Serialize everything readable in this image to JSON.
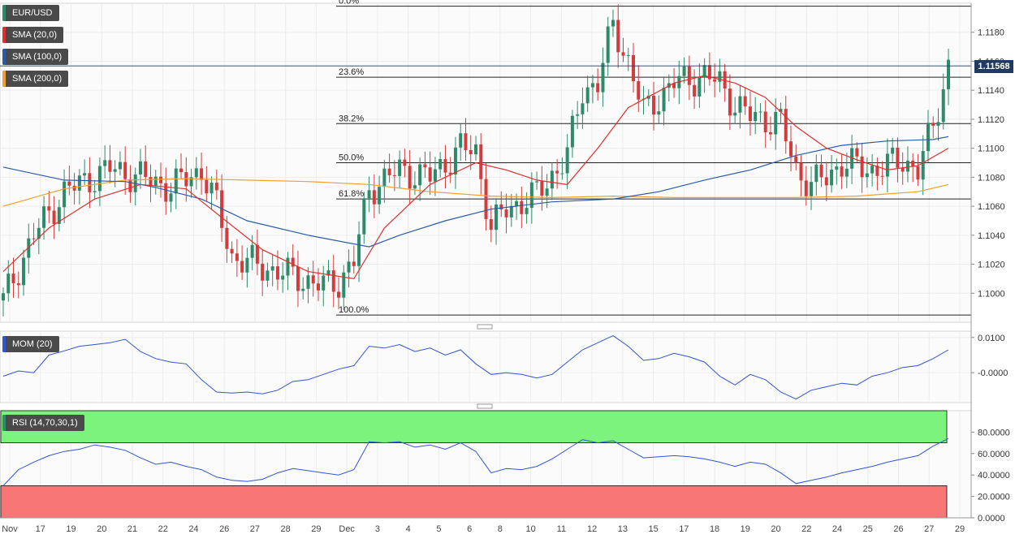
{
  "instrument_label": "EUR/USD",
  "last_price": "1.11568",
  "indicators": {
    "sma20": {
      "label": "SMA (20,0)",
      "color": "#e0302b"
    },
    "sma100": {
      "label": "SMA (100,0)",
      "color": "#2a5ba8"
    },
    "sma200": {
      "label": "SMA (200,0)",
      "color": "#f0a030"
    },
    "mom": {
      "label": "MOM (20)",
      "color": "#2f55d4"
    },
    "rsi": {
      "label": "RSI (14,70,30,1)",
      "color": "#2f55d4"
    }
  },
  "colors": {
    "up": "#2e8b6a",
    "down": "#d23c3c",
    "rsi_over": "#7cf37c",
    "rsi_under": "#f87676"
  },
  "chart_data": [
    {
      "type": "candlestick",
      "title": "EUR/USD",
      "ylim": [
        1.098,
        1.12
      ],
      "yticks": [
        "1.1180",
        "1.1160",
        "1.1140",
        "1.1120",
        "1.1100",
        "1.1080",
        "1.1060",
        "1.1040",
        "1.1020",
        "1.1000"
      ],
      "fibonacci": [
        {
          "label": "0.0%",
          "price": 1.1198
        },
        {
          "label": "23.6%",
          "price": 1.1149
        },
        {
          "label": "38.2%",
          "price": 1.1117
        },
        {
          "label": "50.0%",
          "price": 1.109
        },
        {
          "label": "61.8%",
          "price": 1.1065
        },
        {
          "label": "100.0%",
          "price": 1.0985
        }
      ],
      "close_trace": [
        {
          "x": 0,
          "y": 1.0995
        },
        {
          "x": 2,
          "y": 1.104
        },
        {
          "x": 4,
          "y": 1.107
        },
        {
          "x": 7,
          "y": 1.1086
        },
        {
          "x": 9,
          "y": 1.108
        },
        {
          "x": 11,
          "y": 1.1073
        },
        {
          "x": 13,
          "y": 1.1085
        },
        {
          "x": 14,
          "y": 1.106
        },
        {
          "x": 15,
          "y": 1.1025
        },
        {
          "x": 17,
          "y": 1.1018
        },
        {
          "x": 19,
          "y": 1.1012
        },
        {
          "x": 21,
          "y": 1.1005
        },
        {
          "x": 22,
          "y": 1.1008
        },
        {
          "x": 23,
          "y": 1.1022
        },
        {
          "x": 24,
          "y": 1.1072
        },
        {
          "x": 26,
          "y": 1.1085
        },
        {
          "x": 28,
          "y": 1.108
        },
        {
          "x": 30,
          "y": 1.11
        },
        {
          "x": 31,
          "y": 1.1098
        },
        {
          "x": 32,
          "y": 1.1045
        },
        {
          "x": 33,
          "y": 1.1058
        },
        {
          "x": 35,
          "y": 1.1068
        },
        {
          "x": 37,
          "y": 1.1095
        },
        {
          "x": 38,
          "y": 1.114
        },
        {
          "x": 39,
          "y": 1.1145
        },
        {
          "x": 40,
          "y": 1.1185
        },
        {
          "x": 41,
          "y": 1.116
        },
        {
          "x": 42,
          "y": 1.1125
        },
        {
          "x": 44,
          "y": 1.1145
        },
        {
          "x": 46,
          "y": 1.115
        },
        {
          "x": 47,
          "y": 1.1145
        },
        {
          "x": 48,
          "y": 1.113
        },
        {
          "x": 49,
          "y": 1.1122
        },
        {
          "x": 51,
          "y": 1.1118
        },
        {
          "x": 52,
          "y": 1.1085
        },
        {
          "x": 53,
          "y": 1.1075
        },
        {
          "x": 54,
          "y": 1.108
        },
        {
          "x": 55,
          "y": 1.109
        },
        {
          "x": 57,
          "y": 1.1085
        },
        {
          "x": 58,
          "y": 1.1088
        },
        {
          "x": 59,
          "y": 1.1092
        },
        {
          "x": 60,
          "y": 1.1085
        },
        {
          "x": 61,
          "y": 1.1115
        },
        {
          "x": 62,
          "y": 1.1157
        }
      ],
      "sma20": [
        [
          0,
          1.1015
        ],
        [
          3,
          1.1045
        ],
        [
          6,
          1.1065
        ],
        [
          9,
          1.1075
        ],
        [
          12,
          1.1072
        ],
        [
          14,
          1.1055
        ],
        [
          17,
          1.103
        ],
        [
          20,
          1.1015
        ],
        [
          23,
          1.101
        ],
        [
          25,
          1.1045
        ],
        [
          28,
          1.1075
        ],
        [
          31,
          1.109
        ],
        [
          33,
          1.1085
        ],
        [
          35,
          1.1078
        ],
        [
          37,
          1.1075
        ],
        [
          39,
          1.11
        ],
        [
          41,
          1.1128
        ],
        [
          44,
          1.1145
        ],
        [
          46,
          1.115
        ],
        [
          48,
          1.1145
        ],
        [
          50,
          1.1135
        ],
        [
          52,
          1.1115
        ],
        [
          54,
          1.11
        ],
        [
          56,
          1.1092
        ],
        [
          58,
          1.1085
        ],
        [
          60,
          1.1088
        ],
        [
          62,
          1.11
        ]
      ],
      "sma100": [
        [
          0,
          1.1087
        ],
        [
          4,
          1.1078
        ],
        [
          8,
          1.1077
        ],
        [
          10,
          1.1073
        ],
        [
          13,
          1.1065
        ],
        [
          16,
          1.105
        ],
        [
          20,
          1.104
        ],
        [
          24,
          1.1032
        ],
        [
          26,
          1.104
        ],
        [
          29,
          1.105
        ],
        [
          32,
          1.1058
        ],
        [
          36,
          1.1063
        ],
        [
          40,
          1.1065
        ],
        [
          43,
          1.107
        ],
        [
          46,
          1.1078
        ],
        [
          49,
          1.1085
        ],
        [
          52,
          1.1095
        ],
        [
          55,
          1.1102
        ],
        [
          58,
          1.1105
        ],
        [
          61,
          1.1106
        ],
        [
          62,
          1.1108
        ]
      ],
      "sma200": [
        [
          0,
          1.106
        ],
        [
          4,
          1.1072
        ],
        [
          8,
          1.1078
        ],
        [
          12,
          1.1079
        ],
        [
          16,
          1.1078
        ],
        [
          20,
          1.1077
        ],
        [
          24,
          1.1075
        ],
        [
          28,
          1.107
        ],
        [
          32,
          1.1067
        ],
        [
          36,
          1.1066
        ],
        [
          40,
          1.1067
        ],
        [
          44,
          1.1066
        ],
        [
          48,
          1.1066
        ],
        [
          52,
          1.1066
        ],
        [
          56,
          1.1067
        ],
        [
          60,
          1.107
        ],
        [
          62,
          1.1075
        ]
      ],
      "x_ticks": [
        "Nov",
        "17",
        "19",
        "20",
        "21",
        "22",
        "24",
        "26",
        "27",
        "28",
        "29",
        "Dec",
        "3",
        "4",
        "5",
        "6",
        "8",
        "10",
        "11",
        "12",
        "13",
        "15",
        "17",
        "18",
        "19",
        "20",
        "22",
        "24",
        "25",
        "26",
        "27",
        "29"
      ]
    },
    {
      "type": "line",
      "title": "MOM (20)",
      "ylim": [
        -0.0085,
        0.0118
      ],
      "yticks": [
        "0.0100",
        "-0.0000"
      ],
      "y": [
        -0.001,
        0.0005,
        0.0,
        0.005,
        0.0062,
        0.0075,
        0.008,
        0.0085,
        0.0095,
        0.006,
        0.004,
        0.003,
        0.0025,
        -0.002,
        -0.0055,
        -0.0058,
        -0.0055,
        -0.006,
        -0.005,
        -0.0025,
        -0.002,
        -0.0005,
        0.001,
        0.002,
        0.0075,
        0.007,
        0.008,
        0.006,
        0.007,
        0.005,
        0.0065,
        0.0025,
        -0.0005,
        0.0,
        -0.0005,
        -0.0015,
        -0.0005,
        0.003,
        0.0065,
        0.0085,
        0.0105,
        0.0075,
        0.0035,
        0.004,
        0.0055,
        0.0045,
        0.003,
        -0.001,
        -0.0035,
        -0.0005,
        -0.002,
        -0.0055,
        -0.0075,
        -0.005,
        -0.004,
        -0.003,
        -0.0035,
        -0.001,
        0.0,
        0.0015,
        0.002,
        0.004,
        0.0065
      ]
    },
    {
      "type": "line",
      "title": "RSI (14,70,30,1)",
      "ylim": [
        0,
        100
      ],
      "bands": {
        "upper": 70,
        "lower": 30
      },
      "yticks": [
        "80.0000",
        "60.0000",
        "40.0000",
        "20.0000",
        "0.0000"
      ],
      "y": [
        30,
        45,
        52,
        58,
        62,
        64,
        68,
        66,
        63,
        56,
        50,
        52,
        48,
        45,
        38,
        35,
        34,
        36,
        42,
        46,
        44,
        42,
        40,
        45,
        71,
        70,
        71,
        66,
        68,
        64,
        70,
        62,
        42,
        46,
        45,
        48,
        55,
        64,
        73,
        70,
        72,
        64,
        56,
        57,
        58,
        57,
        55,
        52,
        48,
        52,
        50,
        42,
        32,
        35,
        38,
        42,
        45,
        48,
        52,
        55,
        58,
        67,
        74
      ]
    }
  ]
}
